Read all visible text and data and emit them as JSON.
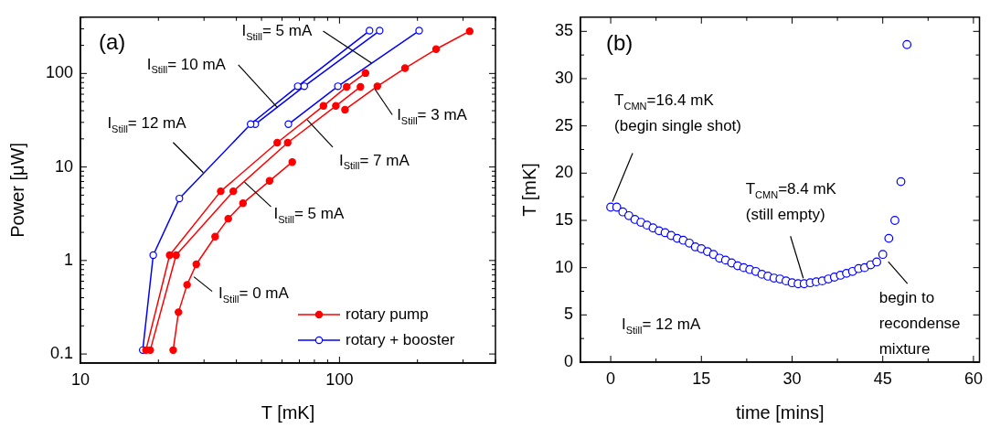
{
  "chart_data": [
    {
      "type": "line",
      "log": "xy",
      "xlabel": "T [mK]",
      "ylabel": "Power [μW]",
      "xlim": [
        10,
        400
      ],
      "ylim": [
        0.08,
        400
      ],
      "xticks": [
        10,
        {
          "value": 20,
          "label": null
        },
        {
          "value": 30,
          "label": null
        },
        {
          "value": 40,
          "label": null
        },
        {
          "value": 50,
          "label": null
        },
        {
          "value": 60,
          "label": null
        },
        {
          "value": 70,
          "label": null
        },
        {
          "value": 80,
          "label": null
        },
        {
          "value": 90,
          "label": null
        },
        100,
        {
          "value": 200,
          "label": null
        },
        {
          "value": 300,
          "label": null
        },
        {
          "value": 400,
          "label": null
        }
      ],
      "yticks": [
        0.1,
        {
          "value": 0.2,
          "label": null
        },
        {
          "value": 0.3,
          "label": null
        },
        {
          "value": 0.4,
          "label": null
        },
        {
          "value": 0.5,
          "label": null
        },
        {
          "value": 0.6,
          "label": null
        },
        {
          "value": 0.7,
          "label": null
        },
        {
          "value": 0.8,
          "label": null
        },
        {
          "value": 0.9,
          "label": null
        },
        1,
        {
          "value": 2,
          "label": null
        },
        {
          "value": 3,
          "label": null
        },
        {
          "value": 4,
          "label": null
        },
        {
          "value": 5,
          "label": null
        },
        {
          "value": 6,
          "label": null
        },
        {
          "value": 7,
          "label": null
        },
        {
          "value": 8,
          "label": null
        },
        {
          "value": 9,
          "label": null
        },
        10,
        {
          "value": 20,
          "label": null
        },
        {
          "value": 30,
          "label": null
        },
        {
          "value": 40,
          "label": null
        },
        {
          "value": 50,
          "label": null
        },
        {
          "value": 60,
          "label": null
        },
        {
          "value": 70,
          "label": null
        },
        {
          "value": 80,
          "label": null
        },
        {
          "value": 90,
          "label": null
        },
        100,
        {
          "value": 200,
          "label": null
        },
        {
          "value": 300,
          "label": null
        },
        {
          "value": 400,
          "label": null
        }
      ],
      "legend": "bottom right",
      "series": [
        {
          "name": "rotary pump",
          "type": "line",
          "marker": "circle",
          "color": "#ff0000",
          "x": [
            22.8,
            23.9,
            25.8,
            28.0,
            33.1,
            37.2,
            42.4,
            53.7,
            65.7
          ],
          "values": [
            0.11,
            0.28,
            0.55,
            0.91,
            1.8,
            2.8,
            4.1,
            7.1,
            11.3
          ]
        },
        {
          "type": "line",
          "marker": "circle",
          "color": "#ff0000",
          "x": [
            18.6,
            23.4,
            38.9,
            63.1,
            96.8,
            120.5
          ],
          "values": [
            0.11,
            1.14,
            5.5,
            18.2,
            45,
            72
          ]
        },
        {
          "type": "line",
          "marker": "circle",
          "color": "#ff0000",
          "x": [
            17.9,
            22.1,
            34.8,
            57.5,
            86.7,
            106.6,
            126
          ],
          "values": [
            0.11,
            1.14,
            5.5,
            18.2,
            45,
            72,
            101
          ]
        },
        {
          "type": "line",
          "marker": "circle",
          "color": "#ff0000",
          "x": [
            105,
            140,
            179,
            236,
            318
          ],
          "values": [
            41,
            73,
            114,
            182,
            283
          ]
        },
        {
          "name": "rotary + booster",
          "type": "line",
          "marker": "open-circle",
          "color": "#0000ff",
          "x": [
            17.4,
            19.1,
            24.1,
            45.4,
            69.0,
            130.6
          ],
          "values": [
            0.11,
            1.14,
            4.6,
            28.7,
            73,
            287
          ]
        },
        {
          "type": "line",
          "marker": "open-circle",
          "color": "#0000ff",
          "x": [
            47.3,
            73.1,
            142.9
          ],
          "values": [
            28.7,
            73,
            287
          ]
        },
        {
          "type": "line",
          "marker": "open-circle",
          "color": "#0000ff",
          "x": [
            63.5,
            98.6,
            203
          ],
          "values": [
            28.7,
            73,
            287
          ]
        }
      ],
      "annotations": [
        "(a)",
        {
          "text": "I$_{Still}$= 5 mA",
          "x": 133,
          "y": 129
        },
        {
          "text": "I$_{Still}$= 10 mA",
          "x": 57.7,
          "y": 43
        },
        {
          "text": "I$_{Still}$= 12 mA",
          "x": 29.8,
          "y": 8.7
        },
        {
          "text": "I$_{Still}$= 7 mA",
          "x": 75,
          "y": 32
        },
        {
          "text": "I$_{Still}$= 5 mA",
          "x": 43,
          "y": 6.9
        },
        {
          "text": "I$_{Still}$= 3 mA",
          "x": 137,
          "y": 68
        },
        {
          "text": "I$_{Still}$= 0 mA",
          "x": 27.4,
          "y": 0.67
        }
      ]
    },
    {
      "type": "scatter",
      "marker": "open-circle",
      "xlabel": "time [mins]",
      "ylabel": "T [mK]",
      "xlim": [
        -5,
        61
      ],
      "ylim": [
        0,
        36.5
      ],
      "xticks": [
        0,
        {
          "value": 7.5,
          "label": null
        },
        15,
        {
          "value": 22.5,
          "label": null
        },
        30,
        {
          "value": 37.5,
          "label": null
        },
        45,
        {
          "value": 52.5,
          "label": null
        },
        60
      ],
      "yticks": [
        0,
        {
          "value": 2.5,
          "label": null
        },
        5,
        {
          "value": 7.5,
          "label": null
        },
        10,
        {
          "value": 12.5,
          "label": null
        },
        15,
        {
          "value": 17.5,
          "label": null
        },
        20,
        {
          "value": 22.5,
          "label": null
        },
        25,
        {
          "value": 27.5,
          "label": null
        },
        30,
        {
          "value": 32.5,
          "label": null
        },
        35
      ],
      "series": [
        {
          "color": "#0000ff",
          "x": [
            0,
            1,
            2,
            3,
            4,
            5,
            6,
            7,
            8,
            9,
            10,
            11,
            12,
            13,
            14,
            15,
            16,
            17,
            18,
            19,
            20,
            21,
            22,
            23,
            24,
            25,
            26,
            27,
            28,
            29,
            30,
            31,
            32,
            33,
            34,
            35,
            36,
            37,
            38,
            39,
            40,
            41,
            42,
            43,
            44,
            45,
            46,
            47,
            48,
            49
          ],
          "values": [
            16.4,
            16.4,
            15.9,
            15.5,
            15.1,
            14.8,
            14.5,
            14.2,
            13.9,
            13.7,
            13.4,
            13.1,
            12.9,
            12.6,
            12.2,
            12.0,
            11.7,
            11.4,
            11.0,
            10.8,
            10.5,
            10.2,
            10.0,
            9.8,
            9.6,
            9.3,
            9.1,
            8.9,
            8.8,
            8.6,
            8.4,
            8.3,
            8.3,
            8.4,
            8.5,
            8.6,
            8.8,
            9.0,
            9.2,
            9.4,
            9.6,
            9.9,
            10.0,
            10.3,
            10.6,
            11.4,
            13.1,
            15.0,
            19.1,
            33.6
          ]
        }
      ],
      "annotations": [
        "(b)",
        {
          "text": "T$_{CMN}$=16.4 mK\n(begin single shot)",
          "x": 0,
          "y": 16.4
        },
        {
          "text": "T$_{CMN}$=8.4 mK\n(still empty)",
          "x": 32,
          "y": 8.3
        },
        {
          "text": "begin to\nrecondense\nmixture",
          "x": 45,
          "y": 11.4
        },
        "I$_{Still}$= 12 mA"
      ]
    }
  ]
}
